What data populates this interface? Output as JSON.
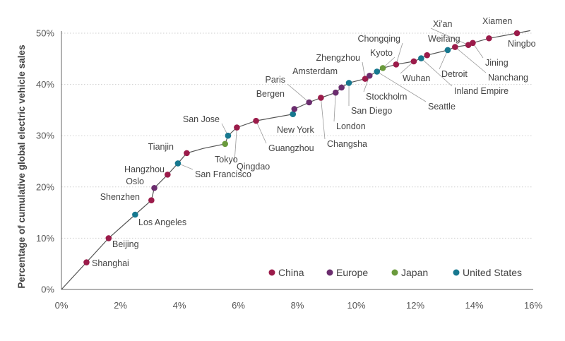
{
  "chart_data": {
    "type": "line",
    "title": "",
    "xlabel": "",
    "ylabel": "Percentage of cumulative global electric vehicle sales",
    "xlim": [
      0,
      16
    ],
    "ylim": [
      0,
      50
    ],
    "x_ticks": [
      "0%",
      "2%",
      "4%",
      "6%",
      "8%",
      "10%",
      "12%",
      "14%",
      "16%"
    ],
    "y_ticks": [
      "0%",
      "10%",
      "20%",
      "30%",
      "40%",
      "50%"
    ],
    "grid": "horizontal-dashed",
    "legend_position": "bottom-right",
    "legend": [
      {
        "key": "china",
        "label": "China",
        "color": "#9b1b4a"
      },
      {
        "key": "europe",
        "label": "Europe",
        "color": "#6b2d6e"
      },
      {
        "key": "japan",
        "label": "Japan",
        "color": "#6a9a3c"
      },
      {
        "key": "us",
        "label": "United States",
        "color": "#17788f"
      }
    ],
    "curve": [
      [
        0,
        0
      ],
      [
        0.85,
        5.3
      ],
      [
        1.6,
        10.0
      ],
      [
        2.5,
        14.6
      ],
      [
        3.05,
        17.4
      ],
      [
        3.15,
        19.8
      ],
      [
        3.6,
        22.4
      ],
      [
        3.95,
        24.6
      ],
      [
        4.25,
        26.6
      ],
      [
        4.8,
        27.5
      ],
      [
        5.55,
        28.4
      ],
      [
        5.65,
        30.0
      ],
      [
        5.95,
        31.6
      ],
      [
        6.6,
        32.9
      ],
      [
        7.85,
        34.2
      ],
      [
        7.9,
        35.2
      ],
      [
        8.4,
        36.5
      ],
      [
        8.8,
        37.4
      ],
      [
        9.3,
        38.4
      ],
      [
        9.5,
        39.4
      ],
      [
        9.75,
        40.3
      ],
      [
        10.3,
        41.1
      ],
      [
        10.45,
        41.7
      ],
      [
        10.7,
        42.5
      ],
      [
        10.9,
        43.2
      ],
      [
        11.35,
        43.9
      ],
      [
        11.95,
        44.5
      ],
      [
        12.2,
        45.1
      ],
      [
        12.4,
        45.7
      ],
      [
        13.1,
        46.7
      ],
      [
        13.35,
        47.3
      ],
      [
        13.8,
        47.7
      ],
      [
        13.95,
        48.1
      ],
      [
        14.5,
        49.0
      ],
      [
        15.45,
        50.0
      ],
      [
        15.9,
        50.5
      ]
    ],
    "cities": [
      {
        "name": "Shanghai",
        "region": "china",
        "x": 0.85,
        "y": 5.3
      },
      {
        "name": "Beijing",
        "region": "china",
        "x": 1.6,
        "y": 10.0
      },
      {
        "name": "Los Angeles",
        "region": "us",
        "x": 2.5,
        "y": 14.6
      },
      {
        "name": "Shenzhen",
        "region": "china",
        "x": 3.05,
        "y": 17.4
      },
      {
        "name": "Oslo",
        "region": "europe",
        "x": 3.15,
        "y": 19.8
      },
      {
        "name": "Hangzhou",
        "region": "china",
        "x": 3.6,
        "y": 22.4
      },
      {
        "name": "San Francisco",
        "region": "us",
        "x": 3.95,
        "y": 24.6
      },
      {
        "name": "Tianjin",
        "region": "china",
        "x": 4.25,
        "y": 26.6
      },
      {
        "name": "Tokyo",
        "region": "japan",
        "x": 5.55,
        "y": 28.4
      },
      {
        "name": "San Jose",
        "region": "us",
        "x": 5.65,
        "y": 30.0
      },
      {
        "name": "Qingdao",
        "region": "china",
        "x": 5.95,
        "y": 31.6
      },
      {
        "name": "Guangzhou",
        "region": "china",
        "x": 6.6,
        "y": 32.9
      },
      {
        "name": "New York",
        "region": "us",
        "x": 7.85,
        "y": 34.2
      },
      {
        "name": "Bergen",
        "region": "europe",
        "x": 7.9,
        "y": 35.2
      },
      {
        "name": "Paris",
        "region": "europe",
        "x": 8.4,
        "y": 36.5
      },
      {
        "name": "Changsha",
        "region": "china",
        "x": 8.8,
        "y": 37.4
      },
      {
        "name": "London",
        "region": "europe",
        "x": 9.3,
        "y": 38.4
      },
      {
        "name": "Amsterdam",
        "region": "europe",
        "x": 9.5,
        "y": 39.4
      },
      {
        "name": "San Diego",
        "region": "us",
        "x": 9.75,
        "y": 40.3
      },
      {
        "name": "Zhengzhou",
        "region": "china",
        "x": 10.3,
        "y": 41.1
      },
      {
        "name": "Stockholm",
        "region": "europe",
        "x": 10.45,
        "y": 41.7
      },
      {
        "name": "Seattle",
        "region": "us",
        "x": 10.7,
        "y": 42.5
      },
      {
        "name": "Kyoto",
        "region": "japan",
        "x": 10.9,
        "y": 43.2
      },
      {
        "name": "Chongqing",
        "region": "china",
        "x": 11.35,
        "y": 43.9
      },
      {
        "name": "Wuhan",
        "region": "china",
        "x": 11.95,
        "y": 44.5
      },
      {
        "name": "Inland Empire",
        "region": "us",
        "x": 12.2,
        "y": 45.1
      },
      {
        "name": "Weifang",
        "region": "china",
        "x": 12.4,
        "y": 45.7
      },
      {
        "name": "Detroit",
        "region": "us",
        "x": 13.1,
        "y": 46.7
      },
      {
        "name": "Nanchang",
        "region": "china",
        "x": 13.35,
        "y": 47.3
      },
      {
        "name": "Xi'an",
        "region": "china",
        "x": 13.8,
        "y": 47.7
      },
      {
        "name": "Jining",
        "region": "china",
        "x": 13.95,
        "y": 48.1
      },
      {
        "name": "Xiamen",
        "region": "china",
        "x": 14.5,
        "y": 49.0
      },
      {
        "name": "Ningbo",
        "region": "china",
        "x": 15.45,
        "y": 50.0
      }
    ]
  }
}
